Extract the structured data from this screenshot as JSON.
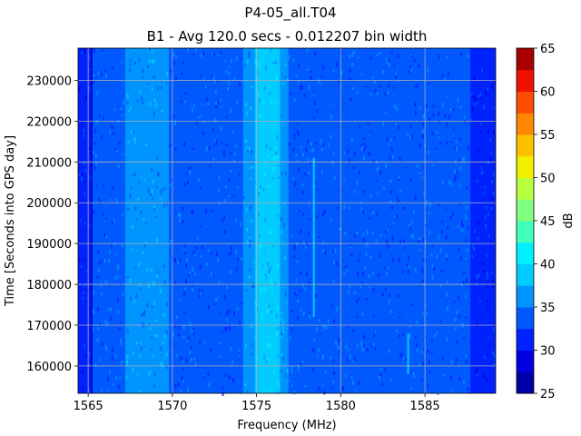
{
  "chart_data": {
    "type": "heatmap",
    "title": "P4-05_all.T04",
    "subtitle": "B1 - Avg 120.0 secs - 0.012207 bin width",
    "xlabel": "Frequency (MHz)",
    "ylabel": "Time [Seconds into GPS day]",
    "xlim": [
      1564.4,
      1589.2
    ],
    "ylim": [
      153300,
      237900
    ],
    "x_ticks": [
      1565,
      1570,
      1575,
      1580,
      1585
    ],
    "y_ticks": [
      160000,
      170000,
      180000,
      190000,
      200000,
      210000,
      220000,
      230000
    ],
    "grid": true,
    "colorbar": {
      "label": "dB",
      "levels": [
        25,
        27.5,
        30,
        32.5,
        35,
        37.5,
        40,
        42.5,
        45,
        47.5,
        50,
        52.5,
        55,
        57.5,
        60,
        62.5,
        65
      ],
      "ticks": [
        25,
        30,
        35,
        40,
        45,
        50,
        55,
        60,
        65
      ],
      "colors": [
        "#0000a8",
        "#0000e0",
        "#0022ff",
        "#0058ff",
        "#0094ff",
        "#00ccff",
        "#00f0ff",
        "#40ffb8",
        "#80ff80",
        "#b8ff40",
        "#f0f000",
        "#ffc000",
        "#ff8800",
        "#ff4c00",
        "#f01000",
        "#a80000"
      ]
    },
    "bands": [
      {
        "from": 1564.4,
        "to": 1565.2,
        "level": 2,
        "note": "edge"
      },
      {
        "from": 1565.2,
        "to": 1567.2,
        "level": 3
      },
      {
        "from": 1567.2,
        "to": 1569.8,
        "level": 4
      },
      {
        "from": 1569.8,
        "to": 1574.2,
        "level": 3
      },
      {
        "from": 1574.2,
        "to": 1574.9,
        "level": 4
      },
      {
        "from": 1574.9,
        "to": 1576.4,
        "level": 5
      },
      {
        "from": 1576.4,
        "to": 1576.9,
        "level": 4
      },
      {
        "from": 1576.9,
        "to": 1587.7,
        "level": 3
      },
      {
        "from": 1587.7,
        "to": 1589.2,
        "level": 2
      }
    ],
    "features": [
      {
        "freq": 1578.4,
        "t_from": 172000,
        "t_to": 211000,
        "level": 5
      },
      {
        "freq": 1584.0,
        "t_from": 158000,
        "t_to": 168000,
        "level": 5
      },
      {
        "freq": 1565.2,
        "t_from": 153300,
        "t_to": 237900,
        "level": 1
      }
    ]
  }
}
